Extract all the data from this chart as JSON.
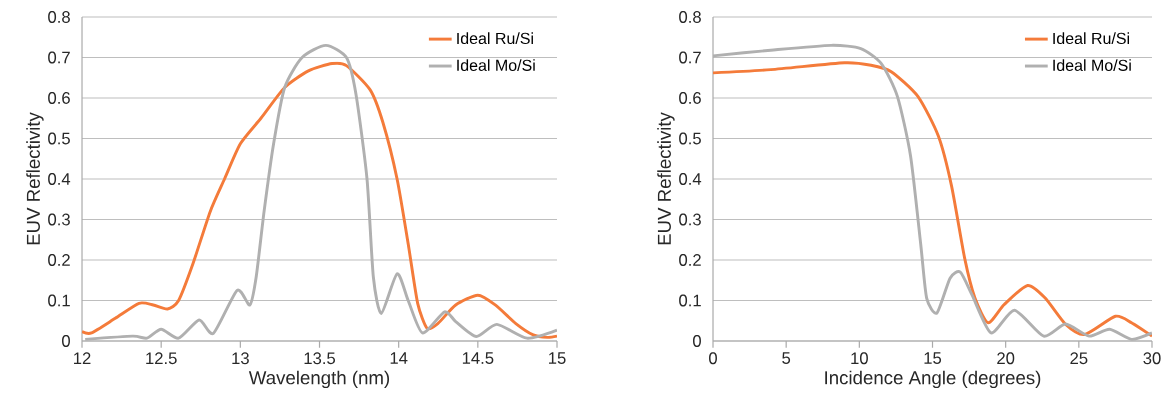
{
  "chart_data": [
    {
      "type": "line",
      "xlabel": "Wavelength (nm)",
      "ylabel": "EUV Reflectivity",
      "xlim": [
        12,
        15
      ],
      "ylim": [
        0,
        0.8
      ],
      "xticks": [
        12,
        12.5,
        13,
        13.5,
        14,
        14.5,
        15
      ],
      "yticks": [
        0,
        0.1,
        0.2,
        0.3,
        0.4,
        0.5,
        0.6,
        0.7,
        0.8
      ],
      "grid": "y",
      "legend": "top right",
      "marker": "none",
      "line_style": "solid",
      "series": [
        {
          "name": "Ideal Ru/Si",
          "color": "#f47b3a",
          "x": [
            12.0,
            12.06,
            12.21,
            12.36,
            12.45,
            12.54,
            12.61,
            12.7,
            12.81,
            12.9,
            13.0,
            13.13,
            13.28,
            13.43,
            13.58,
            13.67,
            13.82,
            13.9,
            13.99,
            14.06,
            14.12,
            14.18,
            14.25,
            14.36,
            14.5,
            14.61,
            14.74,
            14.85,
            14.94,
            15.0
          ],
          "values": [
            0.023,
            0.02,
            0.056,
            0.093,
            0.089,
            0.079,
            0.1,
            0.19,
            0.32,
            0.4,
            0.487,
            0.55,
            0.626,
            0.667,
            0.685,
            0.68,
            0.62,
            0.54,
            0.4,
            0.24,
            0.093,
            0.031,
            0.044,
            0.089,
            0.113,
            0.089,
            0.043,
            0.015,
            0.009,
            0.012
          ]
        },
        {
          "name": "Ideal Mo/Si",
          "color": "#b0b0b0",
          "x": [
            12.02,
            12.32,
            12.41,
            12.5,
            12.61,
            12.74,
            12.83,
            12.98,
            13.06,
            13.1,
            13.15,
            13.21,
            13.28,
            13.39,
            13.54,
            13.67,
            13.73,
            13.8,
            13.84,
            13.89,
            13.99,
            14.06,
            14.15,
            14.29,
            14.36,
            14.49,
            14.62,
            14.81,
            15.0
          ],
          "values": [
            0.004,
            0.012,
            0.007,
            0.029,
            0.007,
            0.052,
            0.019,
            0.125,
            0.089,
            0.158,
            0.32,
            0.487,
            0.626,
            0.7,
            0.73,
            0.7,
            0.61,
            0.4,
            0.158,
            0.068,
            0.166,
            0.1,
            0.02,
            0.072,
            0.048,
            0.011,
            0.041,
            0.007,
            0.027
          ]
        }
      ]
    },
    {
      "type": "line",
      "xlabel": "Incidence Angle (degrees)",
      "ylabel": "EUV Reflectivity",
      "xlim": [
        0,
        30
      ],
      "ylim": [
        0,
        0.8
      ],
      "xticks": [
        0,
        5,
        10,
        15,
        20,
        25,
        30
      ],
      "yticks": [
        0,
        0.1,
        0.2,
        0.3,
        0.4,
        0.5,
        0.6,
        0.7,
        0.8
      ],
      "grid": "y",
      "legend": "top right",
      "marker": "none",
      "line_style": "solid",
      "series": [
        {
          "name": "Ideal Ru/Si",
          "color": "#f47b3a",
          "x": [
            0,
            3.95,
            8.98,
            10.8,
            12.18,
            14.0,
            15.4,
            16.3,
            17.2,
            17.9,
            18.8,
            19.9,
            21.5,
            22.7,
            24.1,
            25.4,
            27.5,
            28.6,
            30
          ],
          "values": [
            0.662,
            0.67,
            0.687,
            0.681,
            0.665,
            0.604,
            0.506,
            0.383,
            0.204,
            0.106,
            0.045,
            0.09,
            0.137,
            0.106,
            0.041,
            0.016,
            0.061,
            0.045,
            0.012
          ]
        },
        {
          "name": "Ideal Mo/Si",
          "color": "#b0b0b0",
          "x": [
            0,
            3.95,
            8.07,
            10.1,
            11.5,
            12.6,
            13.5,
            14.2,
            14.6,
            15.3,
            16.2,
            16.9,
            17.7,
            19.0,
            20.6,
            22.6,
            24.1,
            25.7,
            27.1,
            28.6,
            30
          ],
          "values": [
            0.704,
            0.718,
            0.73,
            0.722,
            0.685,
            0.604,
            0.457,
            0.237,
            0.106,
            0.069,
            0.155,
            0.17,
            0.114,
            0.02,
            0.076,
            0.012,
            0.042,
            0.012,
            0.029,
            0.004,
            0.02
          ]
        }
      ]
    }
  ]
}
